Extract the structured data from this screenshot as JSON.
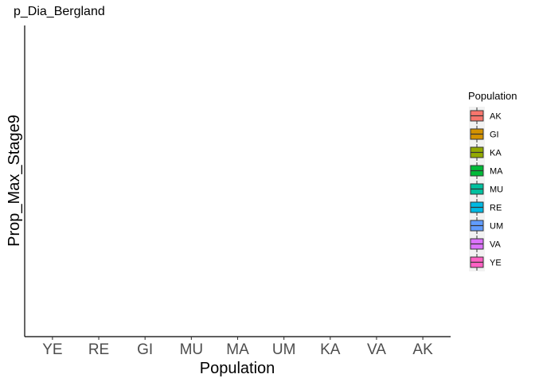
{
  "chart_data": {
    "type": "bar",
    "title": "p_Dia_Bergland",
    "xlabel": "Population",
    "ylabel": "Prop_Max_Stage9",
    "categories": [
      "YE",
      "RE",
      "GI",
      "MU",
      "MA",
      "UM",
      "KA",
      "VA",
      "AK"
    ],
    "series": [],
    "grid": false,
    "legend": {
      "title": "Population",
      "placement": "right",
      "entries": [
        {
          "label": "AK",
          "color": "#F8766D"
        },
        {
          "label": "GI",
          "color": "#D39200"
        },
        {
          "label": "KA",
          "color": "#93AA00"
        },
        {
          "label": "MA",
          "color": "#00BA38"
        },
        {
          "label": "MU",
          "color": "#00C19F"
        },
        {
          "label": "RE",
          "color": "#00B9E3"
        },
        {
          "label": "UM",
          "color": "#619CFF"
        },
        {
          "label": "VA",
          "color": "#DB72FB"
        },
        {
          "label": "YE",
          "color": "#FF61C3"
        }
      ]
    }
  }
}
